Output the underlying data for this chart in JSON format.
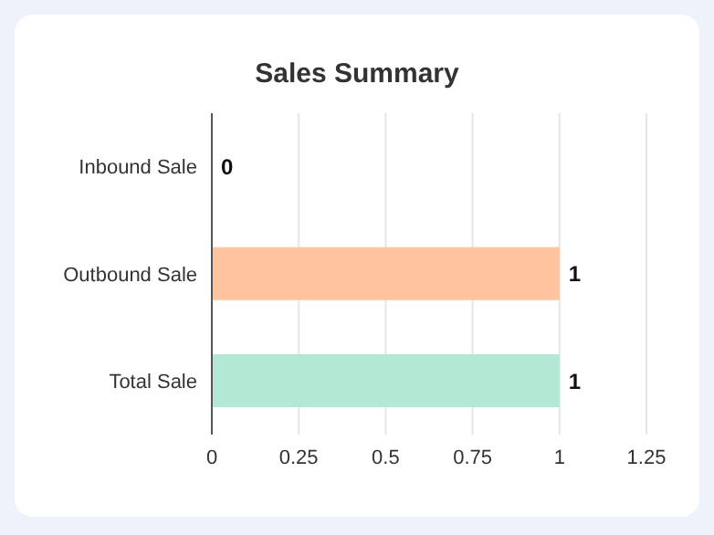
{
  "chart_data": {
    "type": "bar",
    "orientation": "horizontal",
    "title": "Sales Summary",
    "categories": [
      "Inbound Sale",
      "Outbound Sale",
      "Total Sale"
    ],
    "values": [
      0,
      1,
      1
    ],
    "colors": [
      "#a9c8f0",
      "#ffc59e",
      "#b3e8d4"
    ],
    "xlim": [
      0,
      1.25
    ],
    "xticks": [
      0,
      0.25,
      0.5,
      0.75,
      1,
      1.25
    ],
    "grid": "x",
    "data_labels": true
  }
}
